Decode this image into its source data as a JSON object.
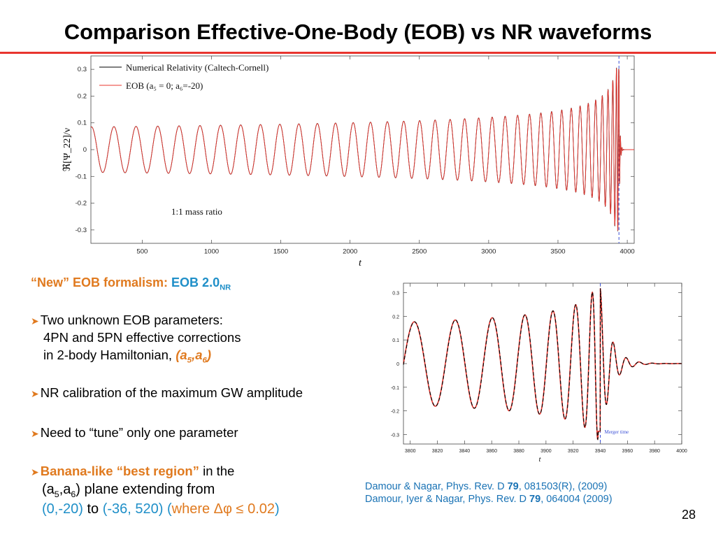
{
  "slide": {
    "title": "Comparison Effective-One-Body (EOB) vs NR waveforms",
    "page_number": "28"
  },
  "colors": {
    "accent": "#e8352e",
    "nr": "#000000",
    "eob": "#e8352e",
    "merger_line": "#3a4fd6",
    "orange_text": "#e07a1f",
    "blue_text": "#1f8fc8"
  },
  "bullets": {
    "heading": {
      "part1": "“New” EOB formalism: ",
      "part2": "EOB 2.0",
      "sub": "NR"
    },
    "b1": {
      "line1": "Two unknown EOB parameters:",
      "line2": "4PN and 5PN effective corrections",
      "line3_pre": "in 2-body Hamiltonian, ",
      "params": {
        "open": "(a",
        "s1": "5",
        "mid": ",a",
        "s2": "6",
        "close": ")"
      }
    },
    "b2": "NR calibration of the maximum GW amplitude",
    "b3": "Need to “tune” only one parameter",
    "b4": {
      "highlight": "Banana-like “best region”",
      "rest": " in the",
      "line2": {
        "open": "(a",
        "s1": "5",
        "mid": ",a",
        "s2": "6",
        "close": ") plane extending from"
      },
      "range_start": "(0,-20)",
      "to_word": " to ",
      "range_end": "(-36, 520)",
      "where_open": " (",
      "where_word": "where ",
      "condition": "Δφ ≤ 0.02",
      "where_close": ")"
    }
  },
  "references": {
    "r1": {
      "pre": "Damour & Nagar, Phys. Rev. D ",
      "vol": "79",
      "post": ", 081503(R), (2009)"
    },
    "r2": {
      "pre": "Damour, Iyer & Nagar, Phys. Rev. D ",
      "vol": "79",
      "post": ", 064004 (2009)"
    }
  },
  "chart_data": [
    {
      "type": "line",
      "title": "",
      "xlabel": "t",
      "ylabel": "ℜ[Ψ_22]/ν",
      "xlim": [
        130,
        4050
      ],
      "ylim": [
        -0.35,
        0.35
      ],
      "xticks": [
        "500",
        "1000",
        "1500",
        "2000",
        "2500",
        "3000",
        "3500",
        "4000"
      ],
      "yticks": [
        "0.3",
        "0.2",
        "0.1",
        "0",
        "-0.1",
        "-0.2",
        "-0.3"
      ],
      "legend": {
        "position": "top-left",
        "entries": [
          "Numerical Relativity (Caltech-Cornell)",
          "EOB (a₅ = 0; a₆=-20)"
        ]
      },
      "annotation": "1:1 mass ratio",
      "merger_time": 3940,
      "series": [
        {
          "name": "Numerical Relativity (Caltech-Cornell)",
          "shape": "inspiral-merger-ringdown",
          "t_start": 130,
          "t_merger": 3940,
          "amplitude_initial": 0.085,
          "amplitude_peak": 0.305,
          "cycles": 37
        },
        {
          "name": "EOB (a₅ = 0; a₆=-20)",
          "shape": "inspiral-merger-ringdown",
          "t_start": 130,
          "t_merger": 3940,
          "amplitude_initial": 0.085,
          "amplitude_peak": 0.305,
          "cycles": 37
        }
      ]
    },
    {
      "type": "line",
      "title": "",
      "xlabel": "t",
      "ylabel": "",
      "xlim": [
        3795,
        4000
      ],
      "ylim": [
        -0.34,
        0.34
      ],
      "xticks": [
        "3800",
        "3820",
        "3840",
        "3860",
        "3880",
        "3900",
        "3920",
        "3940",
        "3960",
        "3980",
        "4000"
      ],
      "yticks": [
        "0.3",
        "0.2",
        "0.1",
        "0",
        "-0.1",
        "-0.2",
        "-0.3"
      ],
      "annotation": "Merger time",
      "merger_time": 3940,
      "series": [
        {
          "name": "Numerical Relativity (Caltech-Cornell)",
          "shape": "late-inspiral-merger-ringdown",
          "t_start": 3795,
          "t_merger": 3940,
          "amplitude_start": 0.175,
          "amplitude_peak": 0.32
        },
        {
          "name": "EOB (a₅ = 0; a₆=-20)",
          "shape": "late-inspiral-merger-ringdown",
          "t_start": 3795,
          "t_merger": 3940,
          "amplitude_start": 0.175,
          "amplitude_peak": 0.32
        }
      ]
    }
  ]
}
